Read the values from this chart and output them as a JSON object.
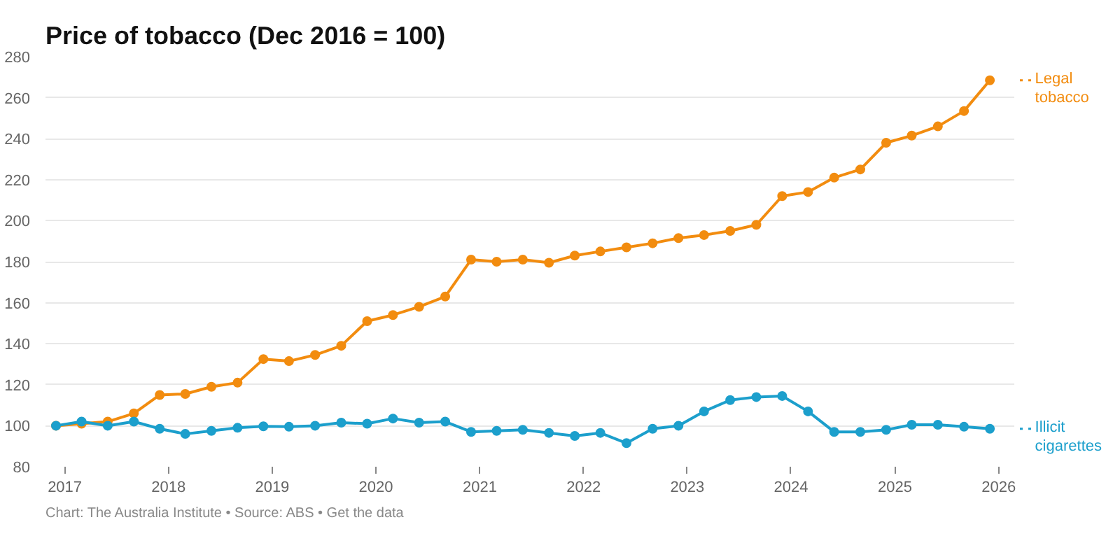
{
  "chart_data": {
    "type": "line",
    "title": "Price of tobacco (Dec 2016 = 100)",
    "x": [
      "2016-12",
      "2017-03",
      "2017-06",
      "2017-09",
      "2017-12",
      "2018-03",
      "2018-06",
      "2018-09",
      "2018-12",
      "2019-03",
      "2019-06",
      "2019-09",
      "2019-12",
      "2020-03",
      "2020-06",
      "2020-09",
      "2020-12",
      "2021-03",
      "2021-06",
      "2021-09",
      "2021-12",
      "2022-03",
      "2022-06",
      "2022-09",
      "2022-12",
      "2023-03",
      "2023-06",
      "2023-09",
      "2023-12",
      "2024-03",
      "2024-06",
      "2024-09",
      "2024-12",
      "2025-03",
      "2025-06",
      "2025-09",
      "2025-12"
    ],
    "series": [
      {
        "name": "Legal tobacco",
        "color": "#f28c0f",
        "values": [
          100,
          101,
          102,
          106,
          115,
          115.5,
          119,
          121,
          132.5,
          131.5,
          134.5,
          139,
          151,
          154,
          158,
          163,
          181,
          180,
          181,
          179.5,
          183,
          185,
          187,
          189,
          191.5,
          193,
          195,
          198,
          212,
          214,
          221,
          225,
          238,
          241.5,
          246,
          253.5,
          268.5
        ]
      },
      {
        "name": "Illicit cigarettes",
        "color": "#1c9fcc",
        "values": [
          100,
          102,
          100,
          102,
          98.5,
          96,
          97.5,
          99,
          99.7,
          99.5,
          100,
          101.5,
          101,
          103.5,
          101.5,
          102,
          97,
          97.5,
          98,
          96.5,
          95,
          96.5,
          91.5,
          98.5,
          100,
          107,
          112.5,
          114,
          114.5,
          107,
          97,
          97,
          98,
          100.5,
          100.5,
          99.5,
          98.5
        ]
      }
    ],
    "xlim": [
      "2016-10-25",
      "2026-02-25"
    ],
    "xticks": [
      "2017",
      "2018",
      "2019",
      "2020",
      "2021",
      "2022",
      "2023",
      "2024",
      "2025",
      "2026"
    ],
    "ylim": [
      80,
      280
    ],
    "yticks": [
      80,
      100,
      120,
      140,
      160,
      180,
      200,
      220,
      240,
      260,
      280
    ],
    "grid": "y",
    "marker": "circle",
    "line_style": "solid",
    "legend": "right",
    "annotations": [
      "Chart: The Australia Institute • Source: ABS • Get the data"
    ]
  }
}
